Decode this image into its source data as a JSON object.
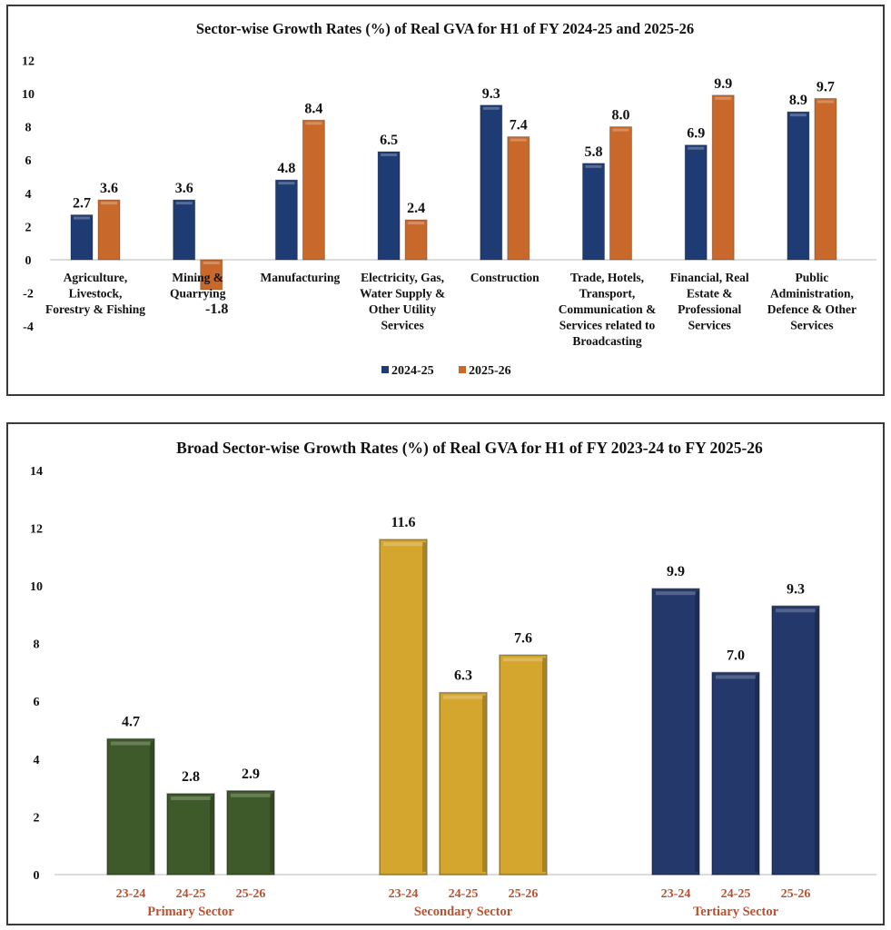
{
  "chart_data": [
    {
      "type": "bar",
      "title": "Sector-wise Growth Rates (%) of Real GVA for H1 of FY 2024-25 and 2025-26",
      "categories": [
        [
          "Agriculture,",
          "Livestock,",
          "Forestry & Fishing"
        ],
        [
          "Mining &",
          "Quarrying"
        ],
        [
          "Manufacturing"
        ],
        [
          "Electricity, Gas,",
          "Water Supply &",
          "Other Utility",
          "Services"
        ],
        [
          "Construction"
        ],
        [
          "Trade, Hotels,",
          "Transport,",
          "Communication &",
          "Services related to",
          "Broadcasting"
        ],
        [
          "Financial, Real",
          "Estate &",
          "Professional",
          "Services"
        ],
        [
          "Public",
          "Administration,",
          "Defence & Other",
          "Services"
        ]
      ],
      "series": [
        {
          "name": "2024-25",
          "color": "#1f3b73",
          "values": [
            2.7,
            3.6,
            4.8,
            6.5,
            9.3,
            5.8,
            6.9,
            8.9
          ]
        },
        {
          "name": "2025-26",
          "color": "#c8682a",
          "values": [
            3.6,
            -1.8,
            8.4,
            2.4,
            7.4,
            8.0,
            9.9,
            9.7
          ]
        }
      ],
      "ylim": [
        -4,
        12
      ],
      "yticks": [
        12,
        10,
        8,
        6,
        4,
        2,
        0,
        -2,
        -4
      ],
      "grid": false,
      "legend": "bottom"
    },
    {
      "type": "bar",
      "title": "Broad Sector-wise Growth Rates (%) of Real GVA for H1 of FY 2023-24 to FY 2025-26",
      "groups": [
        {
          "label": "Primary Sector",
          "color": "#3f5a2a",
          "categories": [
            "23-24",
            "24-25",
            "25-26"
          ],
          "values": [
            4.7,
            2.8,
            2.9
          ]
        },
        {
          "label": "Secondary Sector",
          "color": "#d4a62e",
          "categories": [
            "23-24",
            "24-25",
            "25-26"
          ],
          "values": [
            11.6,
            6.3,
            7.6
          ]
        },
        {
          "label": "Tertiary Sector",
          "color": "#24386b",
          "categories": [
            "23-24",
            "24-25",
            "25-26"
          ],
          "values": [
            9.9,
            7.0,
            9.3
          ]
        }
      ],
      "category_label_color": "#c0502d",
      "ylim": [
        0,
        14
      ],
      "yticks": [
        14,
        12,
        10,
        8,
        6,
        4,
        2,
        0
      ],
      "grid": false,
      "legend": "none"
    }
  ]
}
